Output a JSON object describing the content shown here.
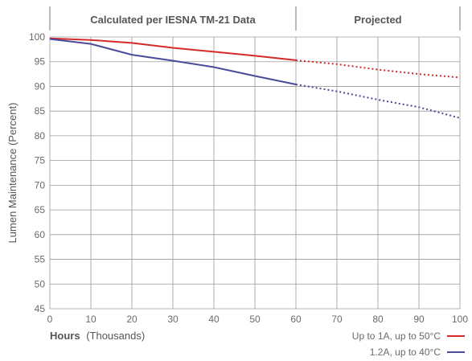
{
  "chart_data": {
    "type": "line",
    "header": {
      "calculated": "Calculated per IESNA TM-21 Data",
      "projected": "Projected"
    },
    "ylabel": "Lumen Maintenance (Percent)",
    "xlabel_bold": "Hours",
    "xlabel_rest": "(Thousands)",
    "xlim": [
      0,
      100
    ],
    "ylim": [
      45,
      100
    ],
    "x_ticks": [
      0,
      10,
      20,
      30,
      40,
      50,
      60,
      70,
      80,
      90,
      100
    ],
    "y_ticks": [
      100,
      95,
      90,
      85,
      80,
      75,
      70,
      65,
      60,
      55,
      50,
      45
    ],
    "calculated_until": 60,
    "grid": true,
    "legend_position": "bottom-right",
    "series": [
      {
        "name": "Up to 1A, up to 50°C",
        "color": "#d42a2a",
        "measured": {
          "x": [
            0,
            10,
            20,
            30,
            40,
            50,
            60
          ],
          "y": [
            99.7,
            99.4,
            98.8,
            97.8,
            97.0,
            96.2,
            95.3
          ]
        },
        "projected": {
          "x": [
            60,
            70,
            80,
            90,
            100
          ],
          "y": [
            95.3,
            94.5,
            93.4,
            92.5,
            91.8
          ]
        }
      },
      {
        "name": "1.2A, up to 40°C",
        "color": "#4a4a9a",
        "measured": {
          "x": [
            0,
            10,
            20,
            30,
            40,
            50,
            60
          ],
          "y": [
            99.6,
            98.6,
            96.4,
            95.2,
            93.9,
            92.1,
            90.4
          ]
        },
        "projected": {
          "x": [
            60,
            70,
            80,
            90,
            100
          ],
          "y": [
            90.4,
            89.0,
            87.3,
            85.8,
            83.6
          ]
        }
      }
    ]
  }
}
